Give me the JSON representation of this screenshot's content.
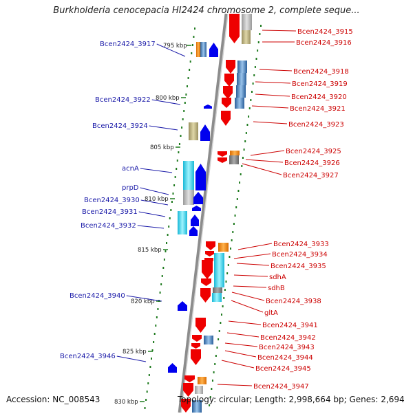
{
  "title": "Burkholderia cenocepacia HI2424 chromosome 2, complete seque...",
  "footer": {
    "accession": "Accession: NC_008543",
    "topology": "Topology: circular; Length: 2,998,664 bp; Genes: 2,694"
  },
  "colors": {
    "left_label": "#1a1aa8",
    "right_label": "#cc0000",
    "forward_gene": "#0000ee",
    "reverse_gene": "#ee0000",
    "backbone": "#8c8c8c",
    "tick": "#1e7a1e"
  },
  "scale_labels": [
    "795 kbp",
    "800 kbp",
    "805 kbp",
    "810 kbp",
    "815 kbp",
    "820 kbp",
    "825 kbp",
    "830 kbp"
  ],
  "left_labels": [
    "Bcen2424_3917",
    "Bcen2424_3922",
    "Bcen2424_3924",
    "acnA",
    "prpD",
    "Bcen2424_3930",
    "Bcen2424_3931",
    "Bcen2424_3932",
    "Bcen2424_3940",
    "Bcen2424_3946"
  ],
  "right_labels": [
    "Bcen2424_3915",
    "Bcen2424_3916",
    "Bcen2424_3918",
    "Bcen2424_3919",
    "Bcen2424_3920",
    "Bcen2424_3921",
    "Bcen2424_3923",
    "Bcen2424_3925",
    "Bcen2424_3926",
    "Bcen2424_3927",
    "Bcen2424_3933",
    "Bcen2424_3934",
    "Bcen2424_3935",
    "sdhA",
    "sdhB",
    "Bcen2424_3938",
    "gltA",
    "Bcen2424_3941",
    "Bcen2424_3942",
    "Bcen2424_3943",
    "Bcen2424_3944",
    "Bcen2424_3945",
    "Bcen2424_3947"
  ]
}
